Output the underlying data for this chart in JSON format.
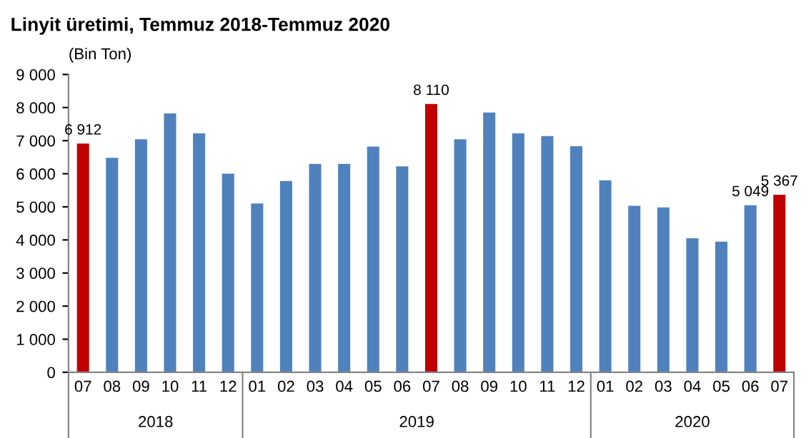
{
  "chart_data": {
    "type": "bar",
    "title": "Linyit üretimi, Temmuz 2018-Temmuz 2020",
    "ylabel": "(Bin Ton)",
    "categories": [
      "07",
      "08",
      "09",
      "10",
      "11",
      "12",
      "01",
      "02",
      "03",
      "04",
      "05",
      "06",
      "07",
      "08",
      "09",
      "10",
      "11",
      "12",
      "01",
      "02",
      "03",
      "04",
      "05",
      "06",
      "07"
    ],
    "values": [
      6912,
      6480,
      7040,
      7820,
      7220,
      6000,
      5100,
      5780,
      6300,
      6300,
      6820,
      6220,
      8110,
      7040,
      7850,
      7220,
      7140,
      6830,
      5800,
      5030,
      4980,
      4050,
      3950,
      5049,
      5367
    ],
    "colors": [
      "#c00000",
      "#4f81bd",
      "#4f81bd",
      "#4f81bd",
      "#4f81bd",
      "#4f81bd",
      "#4f81bd",
      "#4f81bd",
      "#4f81bd",
      "#4f81bd",
      "#4f81bd",
      "#4f81bd",
      "#c00000",
      "#4f81bd",
      "#4f81bd",
      "#4f81bd",
      "#4f81bd",
      "#4f81bd",
      "#4f81bd",
      "#4f81bd",
      "#4f81bd",
      "#4f81bd",
      "#4f81bd",
      "#4f81bd",
      "#c00000"
    ],
    "value_labels": [
      "6 912",
      null,
      null,
      null,
      null,
      null,
      null,
      null,
      null,
      null,
      null,
      null,
      "8 110",
      null,
      null,
      null,
      null,
      null,
      null,
      null,
      null,
      null,
      null,
      "5 049",
      "5 367"
    ],
    "annotations": [
      "2018",
      "2019",
      "2020"
    ],
    "ylim": [
      0,
      9000
    ],
    "yticks": [
      0,
      {
        "value": 1000,
        "label": "1 000"
      },
      {
        "value": 2000,
        "label": "2 000"
      },
      {
        "value": 3000,
        "label": "3 000"
      },
      {
        "value": 4000,
        "label": "4 000"
      },
      {
        "value": 5000,
        "label": "5 000"
      },
      {
        "value": 6000,
        "label": "6 000"
      },
      {
        "value": 7000,
        "label": "7 000"
      },
      {
        "value": 8000,
        "label": "8 000"
      },
      {
        "value": 9000,
        "label": "9 000"
      }
    ],
    "grid": false,
    "legend": false
  }
}
